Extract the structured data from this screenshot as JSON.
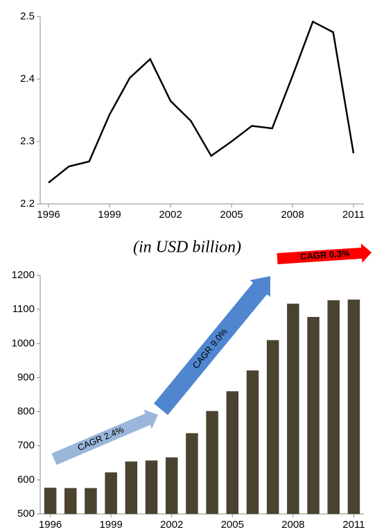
{
  "chart_data": [
    {
      "type": "line",
      "color": "#000000",
      "categories": [
        "1996",
        null,
        null,
        "1999",
        null,
        null,
        "2002",
        null,
        null,
        "2005",
        null,
        null,
        "2008",
        null,
        null,
        "2011"
      ],
      "values": [
        2.234,
        2.26,
        2.268,
        2.343,
        2.402,
        2.432,
        2.365,
        2.333,
        2.277,
        2.3,
        2.325,
        2.321,
        2.405,
        2.492,
        2.475,
        2.281
      ],
      "ylim": [
        2.2,
        2.5
      ],
      "yticks": [
        2.2,
        2.3,
        2.4,
        2.5
      ]
    },
    {
      "type": "bar",
      "color": "#4a4330",
      "subtitle": "(in USD billion)",
      "categories": [
        "1996",
        null,
        null,
        "1999",
        null,
        null,
        "2002",
        null,
        null,
        "2005",
        null,
        null,
        "2008",
        null,
        null,
        "2011"
      ],
      "values": [
        577,
        576,
        576,
        622,
        654,
        657,
        666,
        737,
        802,
        860,
        921,
        1010,
        1117,
        1078,
        1127,
        1129
      ],
      "ylim": [
        500,
        1200
      ],
      "yticks": [
        500,
        600,
        700,
        800,
        900,
        1000,
        1100,
        1200
      ],
      "annotations": [
        "CAGR 2.4%",
        "CAGR 9.0%",
        "CAGR 0.3%"
      ]
    }
  ]
}
